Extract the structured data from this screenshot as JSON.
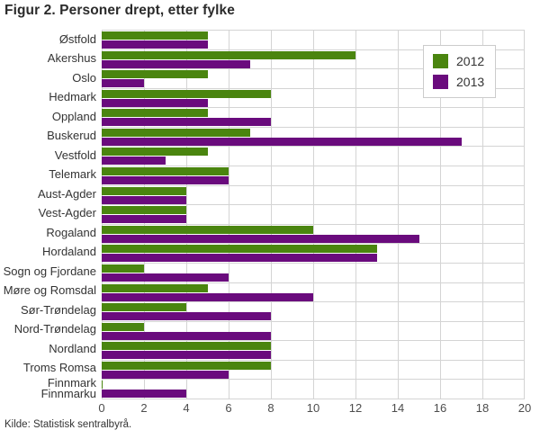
{
  "title": "Figur 2. Personer drept, etter fylke",
  "source": "Kilde: Statistisk sentralbyrå.",
  "colors": {
    "series_2012": "#4a850f",
    "series_2013": "#6a0b7d",
    "grid": "#d4d4d4",
    "text": "#333333"
  },
  "legend": {
    "position": "top-right",
    "items": [
      {
        "label": "2012"
      },
      {
        "label": "2013"
      }
    ]
  },
  "chart_data": {
    "type": "bar",
    "orientation": "horizontal",
    "title": "Figur 2. Personer drept, etter fylke",
    "categories": [
      "Østfold",
      "Akershus",
      "Oslo",
      "Hedmark",
      "Oppland",
      "Buskerud",
      "Vestfold",
      "Telemark",
      "Aust-Agder",
      "Vest-Agder",
      "Rogaland",
      "Hordaland",
      "Sogn og Fjordane",
      "Møre og Romsdal",
      "Sør-Trøndelag",
      "Nord-Trøndelag",
      "Nordland",
      "Troms Romsa",
      "Finnmark Finnmarku"
    ],
    "series": [
      {
        "name": "2012",
        "color": "#4a850f",
        "values": [
          5,
          12,
          5,
          8,
          5,
          7,
          5,
          6,
          4,
          4,
          10,
          13,
          2,
          5,
          4,
          2,
          8,
          8,
          0
        ]
      },
      {
        "name": "2013",
        "color": "#6a0b7d",
        "values": [
          5,
          7,
          2,
          5,
          8,
          17,
          3,
          6,
          4,
          4,
          15,
          13,
          6,
          10,
          8,
          8,
          8,
          6,
          4
        ]
      }
    ],
    "xlim": [
      0,
      20
    ],
    "xticks": [
      0,
      2,
      4,
      6,
      8,
      10,
      12,
      14,
      16,
      18,
      20
    ],
    "grid": true,
    "legend_position": "top-right"
  }
}
